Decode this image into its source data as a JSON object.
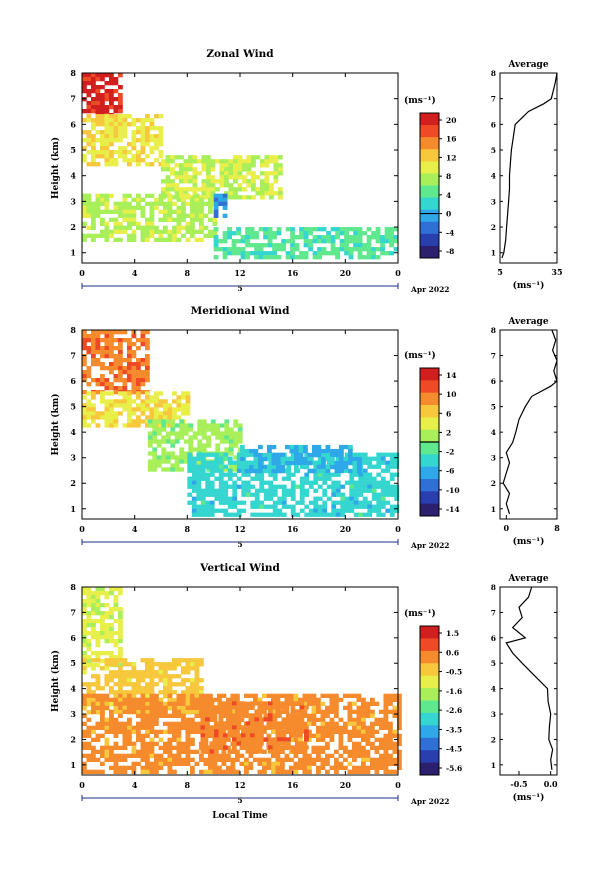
{
  "chart_data": [
    {
      "type": "heatmap",
      "title": "Zonal Wind",
      "ylabel": "Height (km)",
      "ylim": [
        0.6,
        8
      ],
      "y_ticks": [
        "1",
        "2",
        "3",
        "4",
        "5",
        "6",
        "7",
        "8"
      ],
      "xlim": [
        0,
        24
      ],
      "x_ticks": [
        "0",
        "4",
        "8",
        "12",
        "16",
        "20",
        "0"
      ],
      "day_label": "5",
      "month_label": "Apr 2022",
      "colorbar_unit": "(ms⁻¹)",
      "colorbar_ticks": [
        "20",
        "16",
        "12",
        "8",
        "4",
        "0",
        "-4",
        "-8"
      ],
      "colorbar_range": [
        -10,
        22
      ],
      "zero_contour": true,
      "regions": [
        {
          "x": [
            0,
            3
          ],
          "y": [
            6.3,
            8
          ],
          "value": 20
        },
        {
          "x": [
            0,
            6
          ],
          "y": [
            4.5,
            6.4
          ],
          "value": 11
        },
        {
          "x": [
            6,
            15
          ],
          "y": [
            3.2,
            4.8
          ],
          "value": 9
        },
        {
          "x": [
            0,
            10
          ],
          "y": [
            1.5,
            3.3
          ],
          "value": 8
        },
        {
          "x": [
            10,
            24
          ],
          "y": [
            0.8,
            2.0
          ],
          "value": 4
        },
        {
          "x": [
            10,
            11
          ],
          "y": [
            2.5,
            3.3
          ],
          "value": -2
        }
      ],
      "profile": {
        "title": "Average",
        "xlabel": "(ms⁻¹)",
        "x_ticks": [
          "5",
          "35"
        ],
        "xlim": [
          5,
          35
        ],
        "height": [
          0.8,
          1.0,
          1.5,
          2.0,
          2.5,
          3.0,
          3.5,
          4.0,
          4.5,
          5.0,
          5.5,
          6.0,
          6.5,
          6.8,
          7.0,
          7.3,
          7.6,
          8.0
        ],
        "values": [
          6,
          7,
          8,
          8.5,
          9,
          9.5,
          10,
          10,
          10.5,
          11,
          12,
          13,
          20,
          28,
          32,
          33,
          34,
          35
        ]
      }
    },
    {
      "type": "heatmap",
      "title": "Meridional Wind",
      "ylabel": "Height (km)",
      "ylim": [
        0.6,
        8
      ],
      "y_ticks": [
        "1",
        "2",
        "3",
        "4",
        "5",
        "6",
        "7",
        "8"
      ],
      "xlim": [
        0,
        24
      ],
      "x_ticks": [
        "0",
        "4",
        "8",
        "12",
        "16",
        "20",
        "0"
      ],
      "day_label": "5",
      "month_label": "Apr 2022",
      "colorbar_unit": "(ms⁻¹)",
      "colorbar_ticks": [
        "14",
        "10",
        "6",
        "2",
        "-2",
        "-6",
        "-10",
        "-14"
      ],
      "colorbar_range": [
        -16,
        16
      ],
      "zero_contour": true,
      "regions": [
        {
          "x": [
            0,
            5
          ],
          "y": [
            5.5,
            8
          ],
          "value": 10
        },
        {
          "x": [
            0,
            8
          ],
          "y": [
            4.2,
            5.6
          ],
          "value": 5
        },
        {
          "x": [
            5,
            12
          ],
          "y": [
            2.5,
            4.5
          ],
          "value": 1
        },
        {
          "x": [
            8,
            24
          ],
          "y": [
            0.8,
            3.2
          ],
          "value": -4
        },
        {
          "x": [
            12,
            21
          ],
          "y": [
            2.5,
            3.5
          ],
          "value": -6
        }
      ],
      "profile": {
        "title": "Average",
        "xlabel": "(ms⁻¹)",
        "x_ticks": [
          "0",
          "8"
        ],
        "xlim": [
          -1,
          8
        ],
        "height": [
          0.8,
          1.2,
          1.6,
          2.0,
          2.4,
          2.8,
          3.2,
          3.6,
          4.0,
          4.5,
          5.0,
          5.4,
          5.8,
          6.0,
          6.4,
          6.8,
          7.2,
          7.6,
          8.0
        ],
        "values": [
          0.5,
          0,
          0.5,
          -0.5,
          0,
          0.5,
          0,
          1,
          1.5,
          2,
          3,
          4,
          7,
          8,
          7.5,
          8,
          7.3,
          7.8,
          7.2
        ]
      }
    },
    {
      "type": "heatmap",
      "title": "Vertical Wind",
      "ylabel": "Height (km)",
      "xlabel": "Local Time",
      "ylim": [
        0.6,
        8
      ],
      "y_ticks": [
        "1",
        "2",
        "3",
        "4",
        "5",
        "6",
        "7",
        "8"
      ],
      "xlim": [
        0,
        24
      ],
      "x_ticks": [
        "0",
        "4",
        "8",
        "12",
        "16",
        "20",
        "0"
      ],
      "day_label": "5",
      "month_label": "Apr 2022",
      "colorbar_unit": "(ms⁻¹)",
      "colorbar_ticks": [
        "1.5",
        "0.6",
        "-0.5",
        "-1.6",
        "-2.6",
        "-3.5",
        "-4.5",
        "-5.6"
      ],
      "colorbar_range": [
        -6,
        2
      ],
      "zero_contour": false,
      "regions": [
        {
          "x": [
            0,
            3
          ],
          "y": [
            5.0,
            8
          ],
          "value": -1.2
        },
        {
          "x": [
            0,
            9
          ],
          "y": [
            3.0,
            5.2
          ],
          "value": -0.4
        },
        {
          "x": [
            0,
            24
          ],
          "y": [
            0.8,
            3.8
          ],
          "value": 0.3
        },
        {
          "x": [
            9,
            17
          ],
          "y": [
            1.5,
            3.5
          ],
          "value": 0.4
        }
      ],
      "profile": {
        "title": "Average",
        "xlabel": "(ms⁻¹)",
        "x_ticks": [
          "-0.5",
          "0.0"
        ],
        "xlim": [
          -0.8,
          0.1
        ],
        "height": [
          0.8,
          1.2,
          1.6,
          2.0,
          2.5,
          3.0,
          3.5,
          4.0,
          4.5,
          5.0,
          5.4,
          5.8,
          6.0,
          6.4,
          6.8,
          7.2,
          7.6,
          8.0
        ],
        "values": [
          0.02,
          0.0,
          0.03,
          -0.03,
          -0.02,
          0.0,
          -0.04,
          -0.05,
          -0.25,
          -0.45,
          -0.6,
          -0.7,
          -0.4,
          -0.6,
          -0.45,
          -0.5,
          -0.35,
          -0.3
        ]
      }
    }
  ]
}
